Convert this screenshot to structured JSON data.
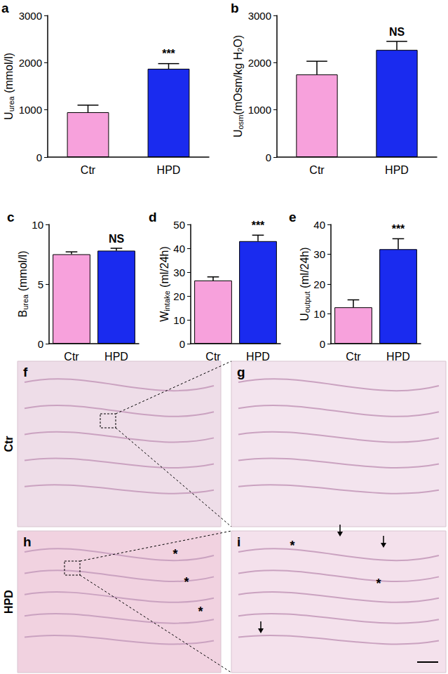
{
  "chart_data": [
    {
      "type": "bar",
      "panel": "a",
      "ylabel": [
        {
          "text": "U"
        },
        {
          "text": "urea",
          "sub": true
        },
        {
          "text": " (mmol/l)"
        }
      ],
      "categories": [
        "Ctr",
        "HPD"
      ],
      "values": [
        950,
        1870
      ],
      "errors": [
        150,
        110
      ],
      "significance": [
        null,
        "***"
      ],
      "colors": [
        "#f7a1dc",
        "#1a2bef"
      ],
      "ylim": [
        0,
        3000
      ],
      "yticks": [
        0,
        1000,
        2000,
        3000
      ],
      "grid": false
    },
    {
      "type": "bar",
      "panel": "b",
      "ylabel": [
        {
          "text": "U"
        },
        {
          "text": "osm",
          "sub": true
        },
        {
          "text": "(mOsm/kg H"
        },
        {
          "text": "2",
          "sub": true
        },
        {
          "text": "O)"
        }
      ],
      "categories": [
        "Ctr",
        "HPD"
      ],
      "values": [
        1750,
        2270
      ],
      "errors": [
        280,
        180
      ],
      "significance": [
        null,
        "NS"
      ],
      "colors": [
        "#f7a1dc",
        "#1a2bef"
      ],
      "ylim": [
        0,
        3000
      ],
      "yticks": [
        0,
        1000,
        2000,
        3000
      ],
      "grid": false
    },
    {
      "type": "bar",
      "panel": "c",
      "ylabel": [
        {
          "text": "B"
        },
        {
          "text": "urea",
          "sub": true
        },
        {
          "text": " (mmol/l)"
        }
      ],
      "categories": [
        "Ctr",
        "HPD"
      ],
      "values": [
        7.5,
        7.8
      ],
      "errors": [
        0.2,
        0.2
      ],
      "significance": [
        null,
        "NS"
      ],
      "colors": [
        "#f7a1dc",
        "#1a2bef"
      ],
      "ylim": [
        0,
        10
      ],
      "yticks": [
        0,
        5,
        10
      ],
      "grid": false
    },
    {
      "type": "bar",
      "panel": "d",
      "ylabel": [
        {
          "text": "W"
        },
        {
          "text": "intake",
          "sub": true
        },
        {
          "text": " (ml/24h)"
        }
      ],
      "categories": [
        "Ctr",
        "HPD"
      ],
      "values": [
        26.5,
        43
      ],
      "errors": [
        1.5,
        2.5
      ],
      "significance": [
        null,
        "***"
      ],
      "colors": [
        "#f7a1dc",
        "#1a2bef"
      ],
      "ylim": [
        0,
        50
      ],
      "yticks": [
        0,
        10,
        20,
        30,
        40,
        50
      ],
      "grid": false
    },
    {
      "type": "bar",
      "panel": "e",
      "ylabel": [
        {
          "text": "U"
        },
        {
          "text": "output",
          "sub": true
        },
        {
          "text": " (ml/24h)"
        }
      ],
      "categories": [
        "Ctr",
        "HPD"
      ],
      "values": [
        12.2,
        31.7
      ],
      "errors": [
        2.5,
        3.5
      ],
      "significance": [
        null,
        "***"
      ],
      "colors": [
        "#f7a1dc",
        "#1a2bef"
      ],
      "ylim": [
        0,
        40
      ],
      "yticks": [
        0,
        10,
        20,
        30,
        40
      ],
      "grid": false
    }
  ],
  "histology": {
    "rows": [
      "Ctr",
      "HPD"
    ],
    "panels": [
      {
        "label": "f",
        "marks": []
      },
      {
        "label": "g",
        "marks": []
      },
      {
        "label": "h",
        "marks": [
          "*",
          "*",
          "*"
        ]
      },
      {
        "label": "i",
        "marks": [
          "*",
          "*"
        ]
      }
    ]
  }
}
